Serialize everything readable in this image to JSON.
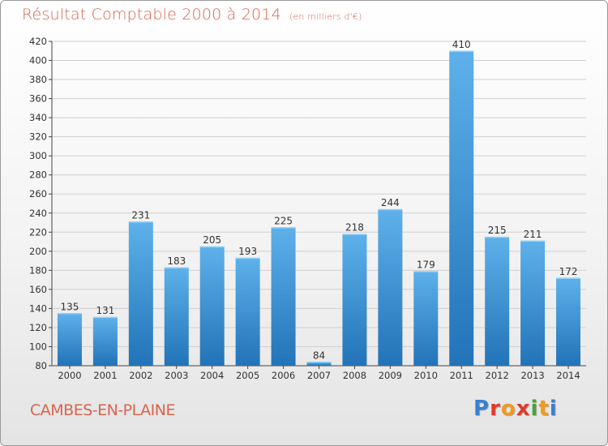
{
  "title": "Résultat Comptable 2000 à 2014",
  "unit": "(en milliers d'€)",
  "commune": "CAMBES-EN-PLAINE",
  "logo": {
    "text": "Proxiti",
    "letter_colors": [
      "#3a7fcf",
      "#e03b2c",
      "#f29a1c",
      "#e03b2c",
      "#4aa33a",
      "#f29a1c",
      "#3a7fcf"
    ]
  },
  "colors": {
    "title": "#d9654c",
    "bar_light": "#5eb1ea",
    "bar_dark": "#2273b8",
    "grid": "#cfcfcf"
  },
  "chart_data": {
    "type": "bar",
    "title": "Résultat Comptable 2000 à 2014",
    "subtitle": "(en milliers d'€)",
    "categories": [
      "2000",
      "2001",
      "2002",
      "2003",
      "2004",
      "2005",
      "2006",
      "2007",
      "2008",
      "2009",
      "2010",
      "2011",
      "2012",
      "2013",
      "2014"
    ],
    "values": [
      135,
      131,
      231,
      183,
      205,
      193,
      225,
      84,
      218,
      244,
      179,
      410,
      215,
      211,
      172
    ],
    "ylim": [
      80,
      420
    ],
    "yticks": [
      80,
      100,
      120,
      140,
      160,
      180,
      200,
      220,
      240,
      260,
      280,
      300,
      320,
      340,
      360,
      380,
      400,
      420
    ],
    "grid": true,
    "data_labels": true
  }
}
